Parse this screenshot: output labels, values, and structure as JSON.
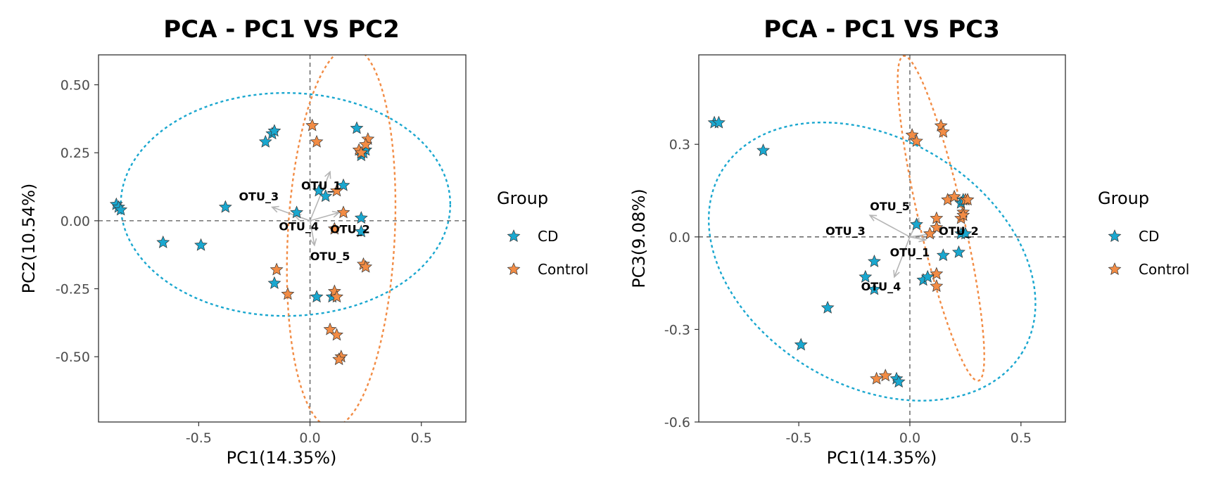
{
  "colors": {
    "CD": "#1aa7cf",
    "Control": "#f28c45",
    "arrow": "#b5b5b5",
    "refline": "#555555"
  },
  "chart_data": [
    {
      "type": "scatter",
      "title": "PCA - PC1 VS PC2",
      "xlabel": "PC1(14.35%)",
      "ylabel": "PC2(10.54%)",
      "xlim": [
        -0.95,
        0.7
      ],
      "ylim": [
        -0.74,
        0.61
      ],
      "xticks": [
        -0.5,
        0.0,
        0.5
      ],
      "xtick_labels": [
        "-0.5",
        "0.0",
        "0.5"
      ],
      "yticks": [
        0.5,
        0.25,
        0.0,
        -0.25,
        -0.5
      ],
      "ytick_labels": [
        "0.50",
        "0.25",
        "0.00",
        "-0.25",
        "-0.50"
      ],
      "legend": {
        "title": "Group",
        "entries": [
          "CD",
          "Control"
        ],
        "position": "right"
      },
      "series": [
        {
          "name": "CD",
          "points": [
            [
              -0.87,
              0.06
            ],
            [
              -0.86,
              0.05
            ],
            [
              -0.85,
              0.04
            ],
            [
              -0.66,
              -0.08
            ],
            [
              -0.49,
              -0.09
            ],
            [
              -0.38,
              0.05
            ],
            [
              -0.2,
              0.29
            ],
            [
              -0.17,
              0.32
            ],
            [
              -0.16,
              0.33
            ],
            [
              -0.06,
              0.03
            ],
            [
              0.04,
              0.11
            ],
            [
              0.07,
              0.09
            ],
            [
              0.15,
              0.13
            ],
            [
              0.21,
              0.34
            ],
            [
              0.23,
              0.24
            ],
            [
              0.24,
              0.25
            ],
            [
              0.25,
              0.26
            ],
            [
              0.23,
              0.01
            ],
            [
              0.23,
              -0.04
            ],
            [
              0.03,
              -0.28
            ],
            [
              0.1,
              -0.28
            ],
            [
              -0.16,
              -0.23
            ]
          ]
        },
        {
          "name": "Control",
          "points": [
            [
              0.01,
              0.35
            ],
            [
              0.03,
              0.29
            ],
            [
              0.12,
              0.11
            ],
            [
              0.15,
              0.03
            ],
            [
              0.11,
              -0.03
            ],
            [
              0.22,
              0.26
            ],
            [
              0.23,
              0.25
            ],
            [
              0.26,
              0.3
            ],
            [
              0.25,
              0.28
            ],
            [
              -0.15,
              -0.18
            ],
            [
              -0.1,
              -0.27
            ],
            [
              0.11,
              -0.26
            ],
            [
              0.12,
              -0.28
            ],
            [
              0.09,
              -0.4
            ],
            [
              0.12,
              -0.42
            ],
            [
              0.14,
              -0.5
            ],
            [
              0.13,
              -0.51
            ],
            [
              0.24,
              -0.16
            ],
            [
              0.25,
              -0.17
            ]
          ]
        }
      ],
      "ellipses": [
        {
          "group": "CD",
          "center": [
            -0.11,
            0.06
          ],
          "semi_axes": [
            0.74,
            0.41
          ],
          "angle_deg": 0
        },
        {
          "group": "Control",
          "center": [
            0.14,
            -0.06
          ],
          "semi_axes": [
            0.24,
            0.7
          ],
          "angle_deg": -3
        }
      ],
      "loadings": [
        {
          "name": "OTU_1",
          "x": 0.09,
          "y": 0.18,
          "label_x": 0.05,
          "label_y": 0.13
        },
        {
          "name": "OTU_2",
          "x": 0.13,
          "y": 0.03,
          "label_x": 0.18,
          "label_y": -0.03
        },
        {
          "name": "OTU_3",
          "x": -0.17,
          "y": 0.05,
          "label_x": -0.23,
          "label_y": 0.09
        },
        {
          "name": "OTU_4",
          "x": -0.07,
          "y": 0.02,
          "label_x": -0.05,
          "label_y": -0.02
        },
        {
          "name": "OTU_5",
          "x": 0.02,
          "y": -0.09,
          "label_x": 0.09,
          "label_y": -0.13
        }
      ]
    },
    {
      "type": "scatter",
      "title": "PCA - PC1 VS PC3",
      "xlabel": "PC1(14.35%)",
      "ylabel": "PC3(9.08%)",
      "xlim": [
        -0.95,
        0.7
      ],
      "ylim": [
        -0.6,
        0.59
      ],
      "xticks": [
        -0.5,
        0.0,
        0.5
      ],
      "xtick_labels": [
        "-0.5",
        "0.0",
        "0.5"
      ],
      "yticks": [
        0.3,
        0.0,
        -0.3,
        -0.6
      ],
      "ytick_labels": [
        "0.3",
        "0.0",
        "-0.3",
        "-0.6"
      ],
      "legend": {
        "title": "Group",
        "entries": [
          "CD",
          "Control"
        ],
        "position": "right"
      },
      "series": [
        {
          "name": "CD",
          "points": [
            [
              -0.88,
              0.37
            ],
            [
              -0.86,
              0.37
            ],
            [
              -0.66,
              0.28
            ],
            [
              -0.37,
              -0.23
            ],
            [
              -0.49,
              -0.35
            ],
            [
              -0.16,
              -0.08
            ],
            [
              -0.2,
              -0.13
            ],
            [
              -0.16,
              -0.17
            ],
            [
              -0.06,
              -0.46
            ],
            [
              -0.05,
              -0.47
            ],
            [
              0.03,
              0.04
            ],
            [
              0.06,
              -0.14
            ],
            [
              0.08,
              -0.13
            ],
            [
              0.15,
              -0.06
            ],
            [
              0.22,
              -0.05
            ],
            [
              0.23,
              0.11
            ],
            [
              0.24,
              0.12
            ],
            [
              0.23,
              0.01
            ],
            [
              0.25,
              0.01
            ]
          ]
        },
        {
          "name": "Control",
          "points": [
            [
              0.01,
              0.33
            ],
            [
              0.03,
              0.31
            ],
            [
              0.14,
              0.36
            ],
            [
              0.15,
              0.34
            ],
            [
              0.17,
              0.12
            ],
            [
              0.2,
              0.13
            ],
            [
              0.25,
              0.12
            ],
            [
              0.26,
              0.12
            ],
            [
              0.24,
              0.08
            ],
            [
              0.23,
              0.06
            ],
            [
              0.12,
              0.06
            ],
            [
              0.12,
              0.03
            ],
            [
              0.09,
              0.01
            ],
            [
              0.12,
              -0.12
            ],
            [
              0.12,
              -0.16
            ],
            [
              -0.15,
              -0.46
            ],
            [
              -0.11,
              -0.45
            ],
            [
              0.24,
              0.07
            ]
          ]
        }
      ],
      "ellipses": [
        {
          "group": "CD",
          "center": [
            -0.17,
            -0.08
          ],
          "semi_axes": [
            0.79,
            0.4
          ],
          "angle_deg": -31
        },
        {
          "group": "Control",
          "center": [
            0.14,
            0.06
          ],
          "semi_axes": [
            0.1,
            0.54
          ],
          "angle_deg": 13
        }
      ],
      "loadings": [
        {
          "name": "OTU_1",
          "x": 0.07,
          "y": -0.01,
          "label_x": 0.0,
          "label_y": -0.05
        },
        {
          "name": "OTU_2",
          "x": 0.1,
          "y": 0.01,
          "label_x": 0.22,
          "label_y": 0.02
        },
        {
          "name": "OTU_3",
          "x": -0.18,
          "y": 0.07,
          "label_x": -0.29,
          "label_y": 0.02
        },
        {
          "name": "OTU_4",
          "x": -0.07,
          "y": -0.13,
          "label_x": -0.13,
          "label_y": -0.16
        },
        {
          "name": "OTU_5",
          "x": 0.04,
          "y": 0.06,
          "label_x": -0.09,
          "label_y": 0.1
        }
      ]
    }
  ]
}
